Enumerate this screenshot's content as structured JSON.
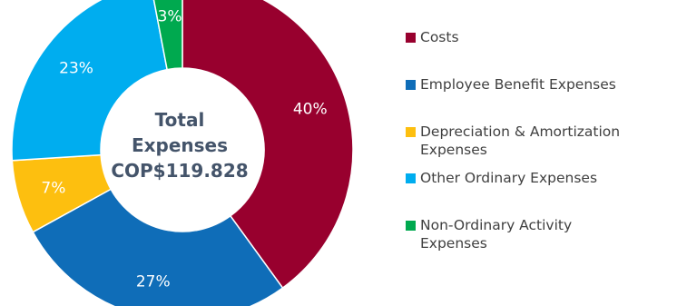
{
  "chart_data": {
    "type": "pie",
    "variant": "donut",
    "title": "",
    "center_label": [
      "Total",
      "Expenses",
      "COP$119.828"
    ],
    "legend_position": "right",
    "slices": [
      {
        "name": "Costs",
        "value": 40,
        "label": "40%",
        "color": "#98002e"
      },
      {
        "name": "Employee Benefit Expenses",
        "value": 27,
        "label": "27%",
        "color": "#0f6db8"
      },
      {
        "name": "Depreciation & Amortization\nExpenses",
        "value": 7,
        "label": "7%",
        "color": "#fdbf0f"
      },
      {
        "name": "Other Ordinary Expenses",
        "value": 23,
        "label": "23%",
        "color": "#00adef"
      },
      {
        "name": "Non-Ordinary Activity\nExpenses",
        "value": 3,
        "label": "3%",
        "color": "#00a94f"
      }
    ]
  }
}
